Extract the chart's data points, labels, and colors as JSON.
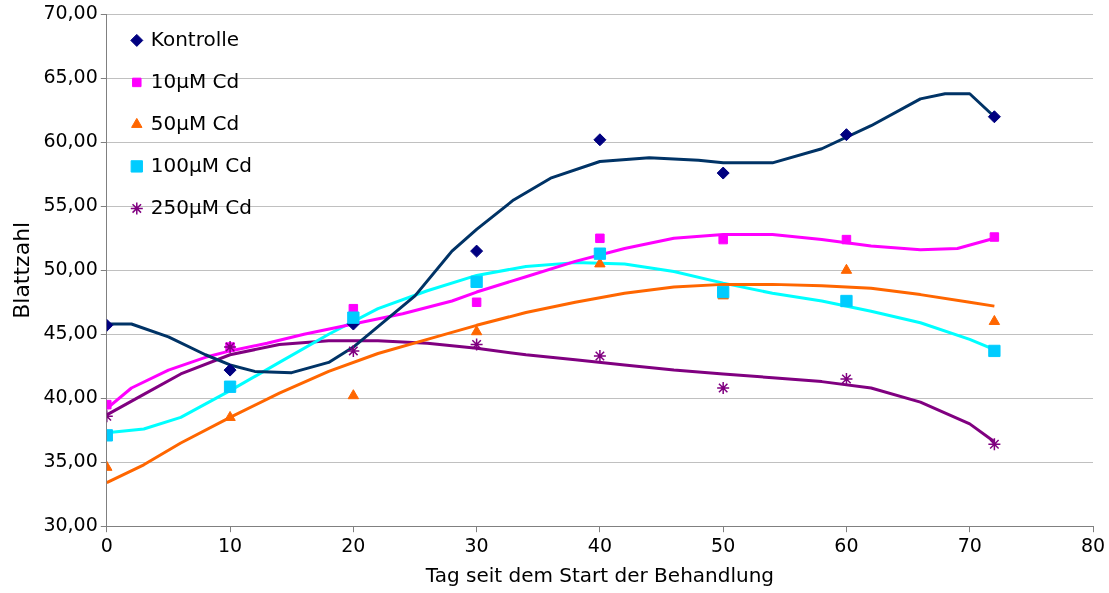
{
  "chart_data": {
    "type": "scatter",
    "xlabel": "Tag seit dem Start der Behandlung",
    "ylabel": "Blattzahl",
    "xlim": [
      0,
      80
    ],
    "xticks": [
      0,
      10,
      20,
      30,
      40,
      50,
      60,
      70,
      80
    ],
    "ylim": [
      30,
      70
    ],
    "yticks": [
      {
        "value": 30,
        "label": "30,00"
      },
      {
        "value": 35,
        "label": "35,00"
      },
      {
        "value": 40,
        "label": "40,00"
      },
      {
        "value": 45,
        "label": "45,00"
      },
      {
        "value": 50,
        "label": "50,00"
      },
      {
        "value": 55,
        "label": "55,00"
      },
      {
        "value": 60,
        "label": "60,00"
      },
      {
        "value": 65,
        "label": "65,00"
      },
      {
        "value": 70,
        "label": "70,00"
      }
    ],
    "grid": "y",
    "legend": "top left",
    "series": [
      {
        "name": "Kontrolle",
        "color": "#000080",
        "marker": "diamond",
        "x": [
          0,
          10,
          20,
          30,
          40,
          50,
          60,
          72
        ],
        "values": [
          45.7,
          42.2,
          45.8,
          51.5,
          60.2,
          57.6,
          60.6,
          62.0
        ]
      },
      {
        "name": "10µM Cd",
        "color": "#ff00ff",
        "marker": "square",
        "x": [
          0,
          10,
          20,
          30,
          40,
          50,
          60,
          72
        ],
        "values": [
          39.5,
          44.0,
          47.0,
          47.5,
          52.5,
          52.4,
          52.4,
          52.6
        ]
      },
      {
        "name": "50µM Cd",
        "color": "#ff6600",
        "marker": "triangle",
        "x": [
          0,
          10,
          20,
          30,
          40,
          50,
          60,
          72
        ],
        "values": [
          34.6,
          38.5,
          40.2,
          45.2,
          50.5,
          48.0,
          50.0,
          46.0
        ]
      },
      {
        "name": "100µM Cd",
        "color": "#00ccff",
        "marker": "square",
        "x": [
          0,
          10,
          20,
          30,
          40,
          50,
          60,
          72
        ],
        "values": [
          37.1,
          40.9,
          46.3,
          49.1,
          51.3,
          48.3,
          47.6,
          43.7
        ]
      },
      {
        "name": "250µM Cd",
        "color": "#800080",
        "marker": "cross",
        "x": [
          0,
          10,
          20,
          30,
          40,
          50,
          60,
          72
        ],
        "values": [
          38.6,
          44.0,
          43.7,
          44.2,
          43.3,
          40.8,
          41.5,
          36.4
        ]
      },
      {
        "type": "line",
        "color": "#003366",
        "marker": "none",
        "x": [
          0,
          2,
          5,
          8,
          10,
          12,
          15,
          18,
          20,
          22,
          25,
          28,
          30,
          33,
          36,
          40,
          44,
          48,
          50,
          54,
          58,
          62,
          66,
          68,
          70,
          72
        ],
        "values": [
          45.8,
          45.8,
          44.8,
          43.4,
          42.6,
          42.1,
          42.0,
          42.8,
          44.0,
          45.6,
          48.0,
          51.5,
          53.2,
          55.5,
          57.2,
          58.5,
          58.8,
          58.6,
          58.4,
          58.4,
          59.5,
          61.3,
          63.4,
          63.8,
          63.8,
          62.0
        ]
      },
      {
        "type": "line",
        "color": "#ff00ff",
        "marker": "none",
        "x": [
          0,
          2,
          5,
          8,
          10,
          13,
          16,
          20,
          24,
          28,
          30,
          34,
          38,
          42,
          46,
          50,
          54,
          58,
          62,
          66,
          69,
          72
        ],
        "values": [
          39.2,
          40.8,
          42.2,
          43.2,
          43.7,
          44.3,
          45.0,
          45.8,
          46.6,
          47.6,
          48.3,
          49.5,
          50.7,
          51.7,
          52.5,
          52.8,
          52.8,
          52.4,
          51.9,
          51.6,
          51.7,
          52.5
        ]
      },
      {
        "type": "line",
        "color": "#ff6600",
        "marker": "none",
        "x": [
          0,
          3,
          6,
          10,
          14,
          18,
          22,
          26,
          30,
          34,
          38,
          42,
          46,
          50,
          54,
          58,
          62,
          66,
          70,
          72
        ],
        "values": [
          33.4,
          34.8,
          36.5,
          38.5,
          40.4,
          42.1,
          43.5,
          44.6,
          45.7,
          46.7,
          47.5,
          48.2,
          48.7,
          48.9,
          48.9,
          48.8,
          48.6,
          48.1,
          47.5,
          47.2
        ]
      },
      {
        "type": "line",
        "color": "#00ffff",
        "marker": "none",
        "x": [
          0,
          3,
          6,
          10,
          14,
          18,
          22,
          26,
          30,
          34,
          38,
          42,
          46,
          50,
          54,
          58,
          62,
          66,
          70,
          72
        ],
        "values": [
          37.3,
          37.6,
          38.5,
          40.6,
          42.8,
          45.0,
          47.0,
          48.4,
          49.6,
          50.3,
          50.6,
          50.5,
          49.9,
          49.0,
          48.2,
          47.6,
          46.8,
          45.9,
          44.6,
          43.8
        ]
      },
      {
        "type": "line",
        "color": "#800080",
        "marker": "none",
        "x": [
          0,
          3,
          6,
          10,
          14,
          18,
          22,
          26,
          30,
          34,
          38,
          42,
          46,
          50,
          54,
          58,
          62,
          66,
          70,
          72
        ],
        "values": [
          38.7,
          40.3,
          41.9,
          43.4,
          44.2,
          44.5,
          44.5,
          44.3,
          43.9,
          43.4,
          43.0,
          42.6,
          42.2,
          41.9,
          41.6,
          41.3,
          40.8,
          39.7,
          38.0,
          36.6
        ]
      }
    ]
  }
}
